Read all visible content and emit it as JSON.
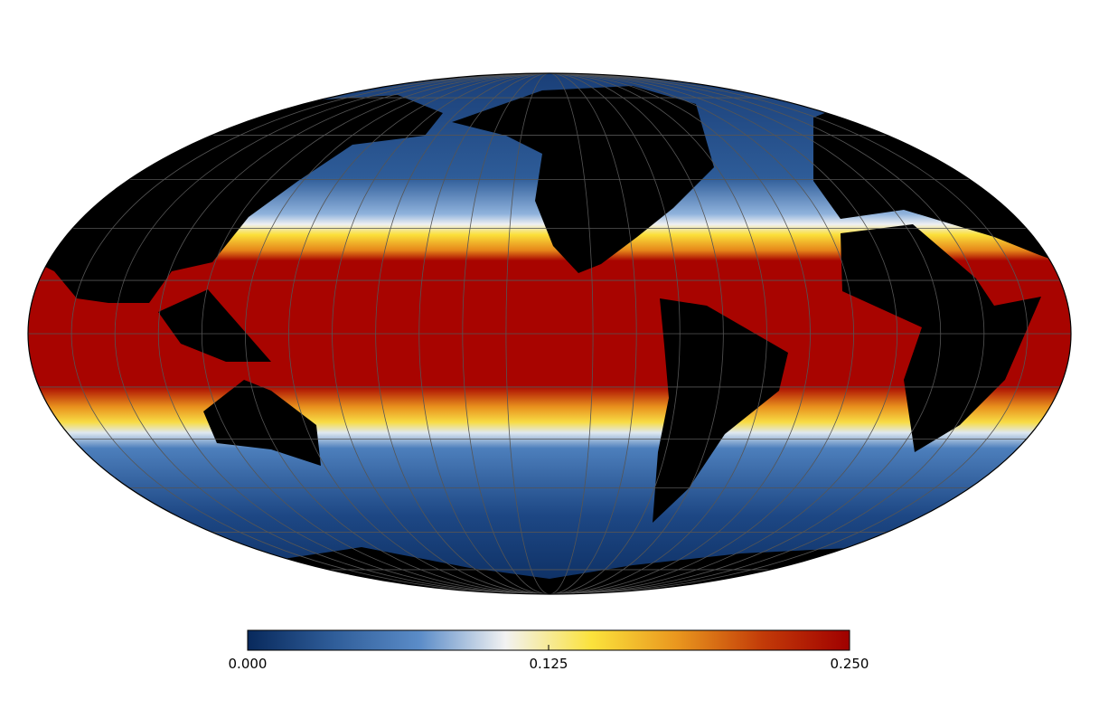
{
  "colorbar": {
    "range": [
      0,
      0.25
    ],
    "ticks": [
      {
        "value": 0,
        "label": "0.000"
      },
      {
        "value": 0.125,
        "label": "0.125"
      },
      {
        "value": 0.25,
        "label": "0.250"
      }
    ],
    "colors": [
      "#08295c",
      "#2f5d99",
      "#5b8cc8",
      "#f2f2f2",
      "#fbe23c",
      "#e9961e",
      "#c23a08",
      "#a00000"
    ]
  }
}
